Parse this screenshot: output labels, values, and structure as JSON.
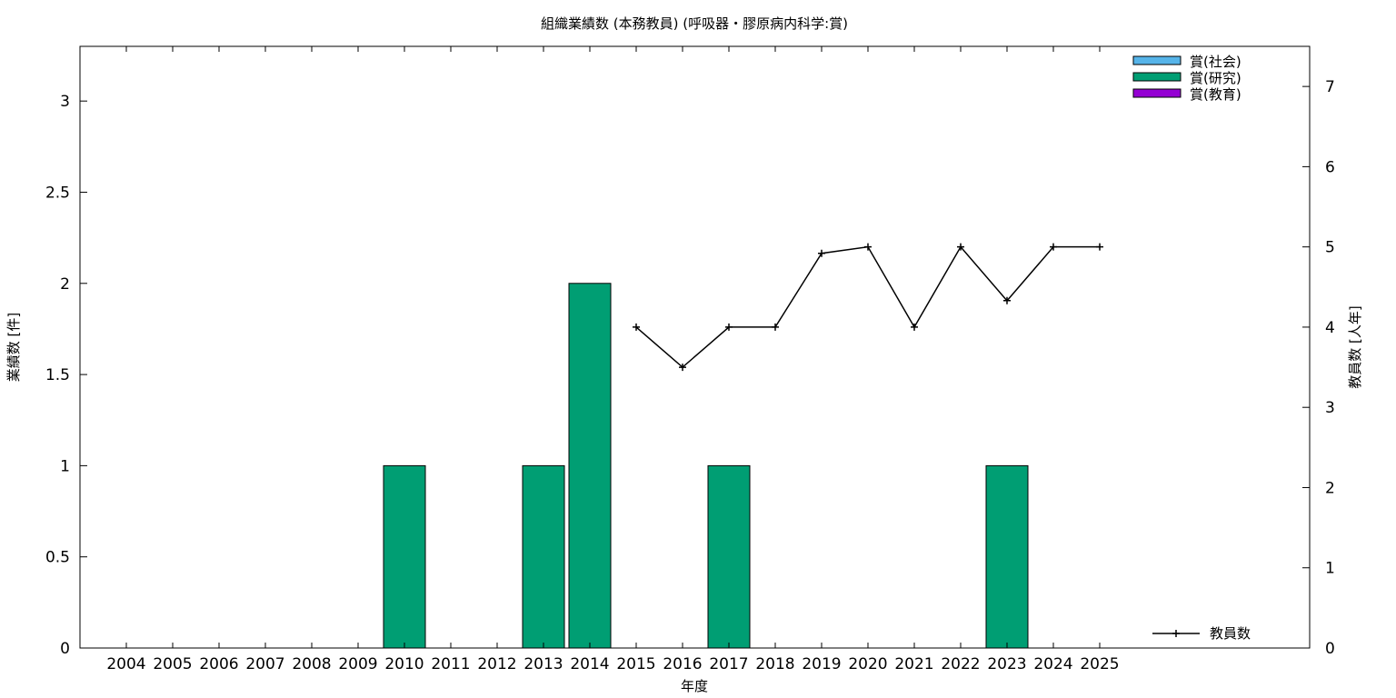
{
  "chart_data": {
    "type": "bar",
    "title": "組織業績数 (本務教員) (呼吸器・膠原病内科学:賞)",
    "xlabel": "年度",
    "ylabel": "業績数 [件]",
    "y2label": "教員数 [人年]",
    "categories": [
      "2004",
      "2005",
      "2006",
      "2007",
      "2008",
      "2009",
      "2010",
      "2011",
      "2012",
      "2013",
      "2014",
      "2015",
      "2016",
      "2017",
      "2018",
      "2019",
      "2020",
      "2021",
      "2022",
      "2023",
      "2024",
      "2025"
    ],
    "ylim": [
      0,
      3.3
    ],
    "y2lim": [
      0,
      7.5
    ],
    "yticks": [
      0,
      0.5,
      1,
      1.5,
      2,
      2.5,
      3
    ],
    "y2ticks": [
      0,
      1,
      2,
      3,
      4,
      5,
      6,
      7
    ],
    "stacked": true,
    "series": [
      {
        "name": "賞(社会)",
        "color": "#56b4e9",
        "values": [
          0,
          0,
          0,
          0,
          0,
          0,
          0,
          0,
          0,
          0,
          0,
          0,
          0,
          0,
          0,
          0,
          0,
          0,
          0,
          0,
          0,
          0
        ]
      },
      {
        "name": "賞(研究)",
        "color": "#009e73",
        "values": [
          0,
          0,
          0,
          0,
          0,
          0,
          1,
          0,
          0,
          1,
          2,
          0,
          0,
          1,
          0,
          0,
          0,
          0,
          0,
          1,
          0,
          0
        ]
      },
      {
        "name": "賞(教育)",
        "color": "#9400d3",
        "values": [
          0,
          0,
          0,
          0,
          0,
          0,
          0,
          0,
          0,
          0,
          0,
          0,
          0,
          0,
          0,
          0,
          0,
          0,
          0,
          0,
          0,
          0
        ]
      }
    ],
    "line_series": {
      "name": "教員数",
      "color": "#000000",
      "axis": "right",
      "x": [
        "2015",
        "2016",
        "2017",
        "2018",
        "2019",
        "2020",
        "2021",
        "2022",
        "2023",
        "2024",
        "2025"
      ],
      "values": [
        4,
        3.5,
        4,
        4,
        4.92,
        5,
        4,
        5,
        4.33,
        5,
        5
      ]
    },
    "legend_position": "top-right",
    "line_legend_position": "bottom-right",
    "grid": false
  }
}
